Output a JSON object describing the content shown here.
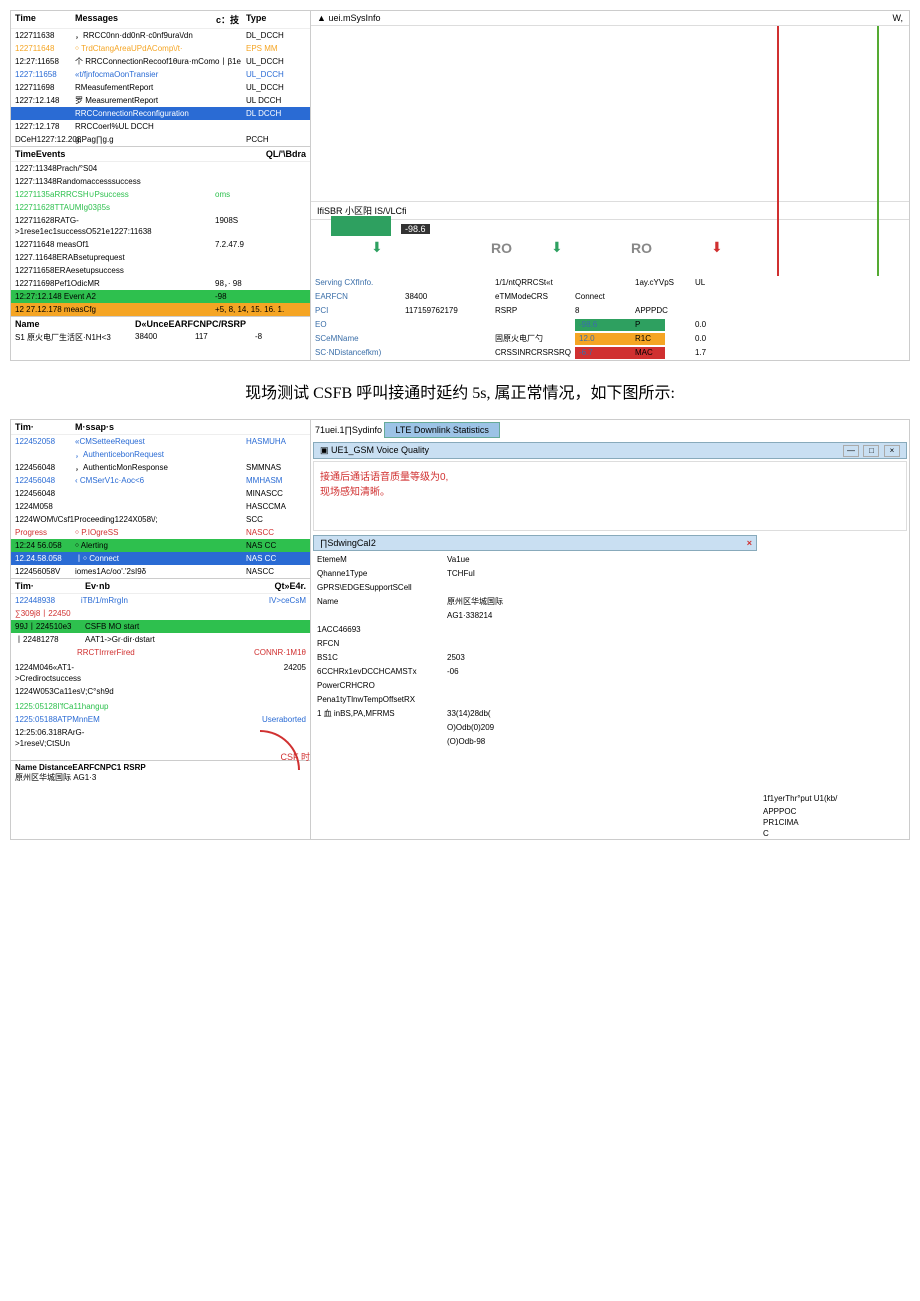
{
  "top": {
    "header": {
      "time": "Time",
      "messages": "Messages",
      "ctech": "c：技",
      "type": "Type"
    },
    "msgs": [
      {
        "t": "122711638",
        "m": "，RRCC0nn·dd0nR·c0nf9ura\\/dn",
        "y": "DL_DCCH",
        "cls": ""
      },
      {
        "t": "122711648",
        "m": "￮ TrdCtangAreaUPdAComp\\/t·",
        "y": "EPS MM",
        "cls": "txt-orange"
      },
      {
        "t": "12:27:11658",
        "m": "个 RRCConnectionRecoof1θura·mComo丨β1e",
        "y": "UL_DCCH",
        "cls": ""
      },
      {
        "t": "1227:11658",
        "m": "«t/fjnfocmaOonTransier",
        "y": "UL_DCCH",
        "cls": "txt-blue"
      },
      {
        "t": "122711698",
        "m": "RMeasufementReport",
        "y": "UL_DCCH",
        "cls": ""
      },
      {
        "t": "1227:12.148",
        "m": "罗 MeasurementReport",
        "y": "UL DCCH",
        "cls": ""
      },
      {
        "t": "",
        "m": "RRCConnectionReconfiguration",
        "y": "DL DCCH",
        "cls": "hl-blue"
      },
      {
        "t": "1227:12.178",
        "m": "RRCCoerl%<ho∏R.cooflguro\\/onComp1deU1‹",
        "y": "UL DCCH",
        "cls": ""
      },
      {
        "t": "DCeH1227:12.208",
        "m": "g,Pag∏g.g",
        "y": "PCCH",
        "cls": ""
      }
    ],
    "ev_header": {
      "time": "TimeEvents",
      "bdra": "QL/'\\Bdra"
    },
    "events": [
      {
        "e": "1227:11348Prach/°S04",
        "v": ""
      },
      {
        "e": "1227:11348Randomaccesssuccess",
        "v": ""
      },
      {
        "e": "12271135aRRRCSH∪Psuccess",
        "v": "oms",
        "cls": "txt-green"
      },
      {
        "e": "122711628TTAUMIg03β5s",
        "v": "",
        "cls": "txt-green"
      },
      {
        "e": "122711628RATG->1rese1ec1successO521e1227:11638",
        "v": "1908S"
      },
      {
        "e": "122711648    measOf1",
        "v": "7.2.47.9"
      },
      {
        "e": "1227.11648ERABsetuprequest",
        "v": ""
      },
      {
        "e": "122711658ERAesetupsuccess",
        "v": ""
      },
      {
        "e": "122711698Pef1OdicMR",
        "v": "98，· 98"
      },
      {
        "e": "12:27:12.148    Event A2",
        "v": "-98",
        "cls": "hl-green"
      },
      {
        "e": "12 27.12.178    measCfg",
        "v": "+5, 8, 14, 15. 16. 1.",
        "cls": "hl-orange"
      }
    ],
    "name_hdr": {
      "a": "Name",
      "b": "D«UnceEARFCNPC/RSRP"
    },
    "name_row": {
      "a": "S1 原火电厂生活区·N1H<3",
      "b": "38400",
      "c": "117",
      "d": "-8"
    },
    "sys_top": "uei.mSysInfo",
    "sys_w": "W,",
    "sys_sub": "IfiSBR 小区阳 IS/\\/LCfi",
    "chart": {
      "val": "-98.6",
      "ro": "RO",
      "arrow": "⬇"
    },
    "serving": [
      {
        "a": "Serving CXfInfo.",
        "b": "",
        "c": "1/1/ntQRRCSt«t",
        "d": "",
        "e": "1ay.cYVpS",
        "f": "UL"
      },
      {
        "a": "EARFCN",
        "b": "38400",
        "c": "eTMModeCRS",
        "d": "Connect",
        "e": "",
        "f": ""
      },
      {
        "a": "PCI",
        "b": "117159762179",
        "c": "RSRP",
        "d": "8",
        "e": "APPPDC",
        "f": ""
      },
      {
        "a": "EO",
        "b": "",
        "c": "",
        "d": "-98.6",
        "e": "P",
        "f": "0.0",
        "dcl": "badge badge-g"
      },
      {
        "a": "SCeMName",
        "b": "",
        "c": "固原火电厂勺",
        "d": "12.0",
        "e": "R1C",
        "f": "0.0",
        "dcl": "badge badge-o"
      },
      {
        "a": "SC·NDistancefkm)",
        "b": "",
        "c": "CRSSINRCRSRSRQ",
        "d": "-6.7",
        "e": "MAC",
        "f": "1.7",
        "dcl": "badge badge-r"
      }
    ]
  },
  "caption": "现场测试 CSFB 呼叫接通时延约 5s, 属正常情况，如下图所示:",
  "bot": {
    "header": {
      "time": "Tim·",
      "msg": "M·ssap·s"
    },
    "msgs": [
      {
        "t": "122452058",
        "m": "«CMSetteeRequest",
        "y": "HASMUHA",
        "cls": "txt-blue"
      },
      {
        "t": "",
        "m": "，AuthenticebonRequest",
        "y": "",
        "cls": "txt-blue"
      },
      {
        "t": "122456048",
        "m": "，AuthenticMonResponse",
        "y": "SMMNAS",
        "cls": ""
      },
      {
        "t": "122456048",
        "m": "‹ CMSerV1c·Aoc<6",
        "y": "MMHASM",
        "cls": "txt-blue"
      },
      {
        "t": "122456048",
        "m": "",
        "y": "MINASCC",
        "cls": ""
      },
      {
        "t": "1224M058",
        "m": "",
        "y": "HASCCMA",
        "cls": ""
      },
      {
        "t": "1224WOM\\/Csf1Proceeding1224X058\\/;",
        "m": "",
        "y": "SCC",
        "cls": ""
      },
      {
        "t": "Progress",
        "m": "￮ P.IOgreSS",
        "y": "NASCC",
        "cls": "txt-red"
      },
      {
        "t": "12:24 56.058",
        "m": "￮ Alerting",
        "y": "NAS CC",
        "cls": "hl-green"
      },
      {
        "t": "12.24.58.058",
        "m": "丨￮ Connect",
        "y": "NAS CC",
        "cls": "hl-blue"
      },
      {
        "t": "122456058V",
        "m": "iomes1Ac/oo'.'2sI9δ",
        "y": "NASCC",
        "cls": ""
      }
    ],
    "ev_header": {
      "t": "Tim·",
      "e": "Ev·nb",
      "q": "Qt»E4r."
    },
    "events": [
      {
        "t": "122448938",
        "e": "iTB/1/mRrgIn",
        "v": "IV>ceCsM",
        "cls": "txt-blue"
      },
      {
        "t": "∑309j8丨22450",
        "e": "",
        "v": "",
        "cls": "txt-red"
      },
      {
        "t": "99J丨224510e3",
        "e": "CSFB MO start",
        "v": "",
        "cls": "hl-green"
      },
      {
        "t": "丨22481278",
        "e": "AAT1->Gr·dir·dstart",
        "v": "",
        "cls": ""
      },
      {
        "t": "",
        "e": "RRCTIrrrerFired",
        "v": "CONNR·1M1θ",
        "cls": "txt-red"
      },
      {
        "t": "",
        "e": "",
        "v": "",
        "cls": ""
      },
      {
        "t": "1224M046«AT1->Crediroctsuccess",
        "e": "",
        "v": "24205",
        "cls": ""
      },
      {
        "t": "1224W053Ca11es\\/;C°sh9d",
        "e": "",
        "v": "",
        "cls": ""
      },
      {
        "t": "",
        "e": "",
        "v": "",
        "cls": ""
      },
      {
        "t": "1225:05128I'fCa11hangup",
        "e": "",
        "v": "",
        "cls": "txt-green"
      },
      {
        "t": "1225:05188ATPMnnEM",
        "e": "",
        "v": "Useraborted",
        "cls": "txt-blue"
      },
      {
        "t": "12:25:06.318RArG->1rese\\/;CtSUn",
        "e": "",
        "v": "",
        "cls": ""
      }
    ],
    "csf_label": "CSF\n时",
    "name_hdr": "Name             DistanceEARFCNPC1             RSRP",
    "name_row": "原州区华城国际 AG1·3",
    "sydinfo": "71uei.1∏Sydinfo",
    "lte_tab": "LTE Downlink Statistics",
    "vq_title": "▣ UE1_GSM Voice Quality",
    "vq_warn1": "接通后通话语音质量等级为0,",
    "vq_warn2": "现场感知清晰。",
    "sv_title": "∏SdwingCaI2",
    "kv": [
      {
        "k": "EtemeM",
        "v": "Va1ue"
      },
      {
        "k": "Qhanne1Type",
        "v": "TCHFuI"
      },
      {
        "k": "GPRS\\EDGESupportSCell",
        "v": ""
      },
      {
        "k": "Name",
        "v": "原州区华城国际"
      },
      {
        "k": "",
        "v": "AG1·338214"
      },
      {
        "k": "1ACC<tIDRACBCCHA",
        "v": "46693"
      },
      {
        "k": "RFCN",
        "v": ""
      },
      {
        "k": "BS1C",
        "v": "2503"
      },
      {
        "k": "6CCHRx1evDCCHCAMSTx",
        "v": "-06"
      },
      {
        "k": "PowerCRHCRO",
        "v": ""
      },
      {
        "k": "Pena1tyTlnwTempOffsetRX",
        "v": ""
      },
      {
        "k": "1 血 inBS,PA,MFRMS",
        "v": "33(14)28db("
      },
      {
        "k": "",
        "v": "O)Odb(0)209"
      },
      {
        "k": "",
        "v": "(O)Odb-98"
      }
    ],
    "col3": [
      "1f1yerThr°put      U1(kb/",
      "",
      "APPPOC",
      "PR1CIMA",
      "C"
    ]
  }
}
